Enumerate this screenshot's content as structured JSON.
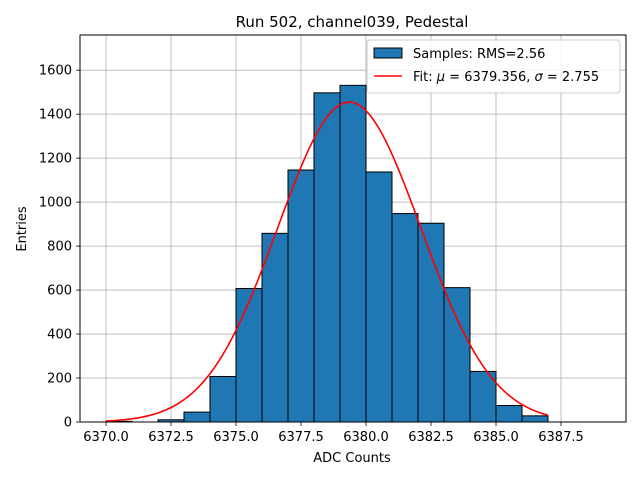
{
  "chart_data": {
    "type": "bar",
    "title": "Run 502, channel039, Pedestal",
    "xlabel": "ADC Counts",
    "ylabel": "Entries",
    "xlim": [
      6369.0,
      6390.0
    ],
    "ylim": [
      0,
      1760
    ],
    "xticks": [
      6370.0,
      6372.5,
      6375.0,
      6377.5,
      6380.0,
      6382.5,
      6385.0,
      6387.5
    ],
    "xtick_labels": [
      "6370.0",
      "6372.5",
      "6375.0",
      "6377.5",
      "6380.0",
      "6382.5",
      "6385.0",
      "6387.5"
    ],
    "yticks": [
      0,
      200,
      400,
      600,
      800,
      1000,
      1200,
      1400,
      1600
    ],
    "ytick_labels": [
      "0",
      "200",
      "400",
      "600",
      "800",
      "1000",
      "1200",
      "1400",
      "1600"
    ],
    "grid": true,
    "legend_position": "top-right",
    "bin_width": 1,
    "bins": [
      {
        "left": 6370,
        "value": 3
      },
      {
        "left": 6372,
        "value": 10
      },
      {
        "left": 6373,
        "value": 45
      },
      {
        "left": 6374,
        "value": 207
      },
      {
        "left": 6375,
        "value": 607
      },
      {
        "left": 6376,
        "value": 858
      },
      {
        "left": 6377,
        "value": 1146
      },
      {
        "left": 6378,
        "value": 1497
      },
      {
        "left": 6379,
        "value": 1531
      },
      {
        "left": 6380,
        "value": 1137
      },
      {
        "left": 6381,
        "value": 948
      },
      {
        "left": 6382,
        "value": 904
      },
      {
        "left": 6383,
        "value": 611
      },
      {
        "left": 6384,
        "value": 230
      },
      {
        "left": 6385,
        "value": 75
      },
      {
        "left": 6386,
        "value": 28
      }
    ],
    "series": [
      {
        "name": "Samples: RMS=2.56",
        "kind": "histogram",
        "color": "#1f77b4",
        "edge_color": "#000000"
      },
      {
        "name": "Fit: μ = 6379.356, σ = 2.755",
        "kind": "gaussian-fit",
        "color": "#ff0000",
        "mu": 6379.356,
        "sigma": 2.755,
        "amplitude": 1455,
        "x_range": [
          6370.0,
          6387.0
        ]
      }
    ],
    "legend": {
      "samples_prefix": "Samples: RMS=2.56",
      "fit_prefix": "Fit: ",
      "mu_symbol": "μ",
      "mu_text": " = 6379.356, ",
      "sigma_symbol": "σ",
      "sigma_text": " = 2.755"
    }
  }
}
